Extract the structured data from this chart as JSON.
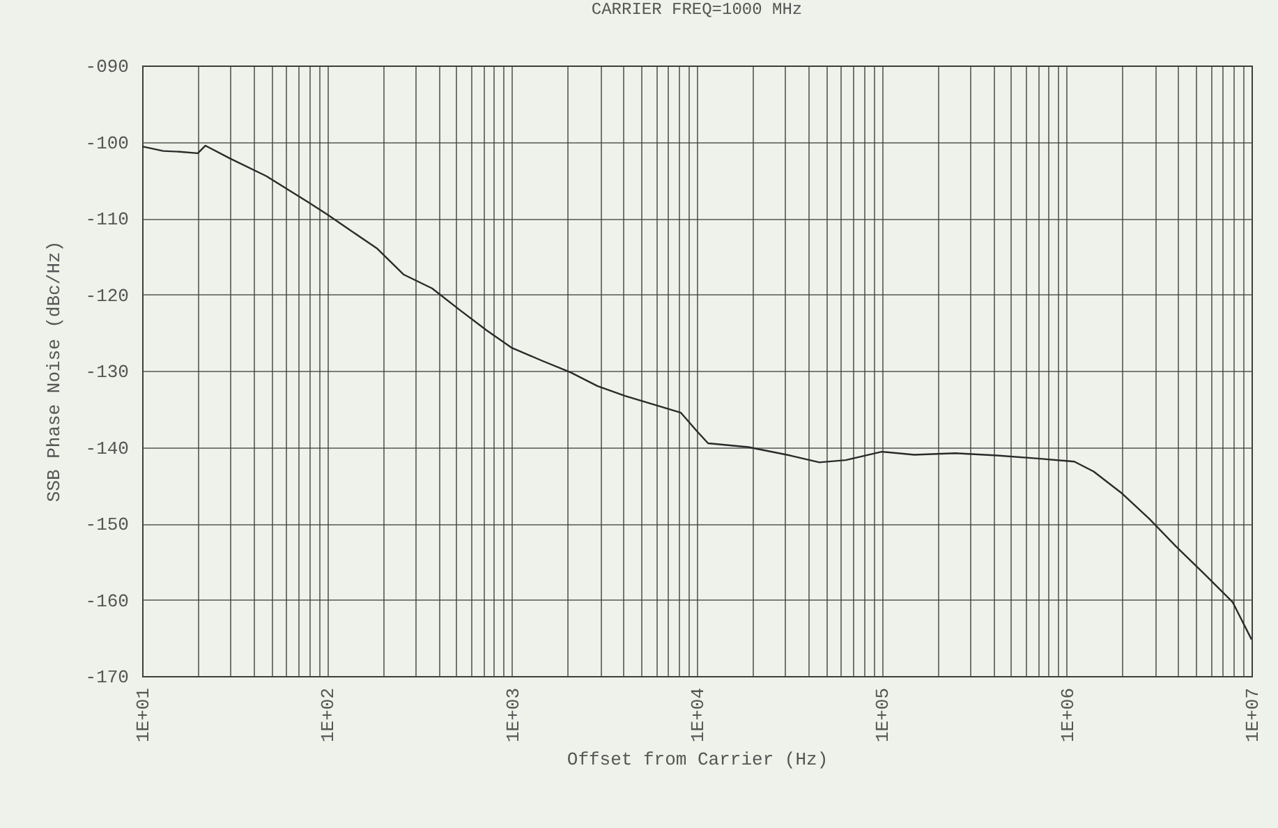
{
  "chart_data": {
    "type": "line",
    "title": "CARRIER FREQ=1000 MHz",
    "xlabel": "Offset from Carrier (Hz)",
    "ylabel": "SSB Phase Noise (dBc/Hz)",
    "log": "x",
    "grid": true,
    "legend": false,
    "marker": "none",
    "line_style": "solid",
    "xlim": [
      10,
      10000000
    ],
    "ylim": [
      -170,
      -90
    ],
    "xticks": [
      {
        "value": 10,
        "label": "1E+01"
      },
      {
        "value": 20,
        "label": null
      },
      {
        "value": 30,
        "label": null
      },
      {
        "value": 40,
        "label": null
      },
      {
        "value": 50,
        "label": null
      },
      {
        "value": 60,
        "label": null
      },
      {
        "value": 70,
        "label": null
      },
      {
        "value": 80,
        "label": null
      },
      {
        "value": 90,
        "label": null
      },
      {
        "value": 100,
        "label": "1E+02"
      },
      {
        "value": 200,
        "label": null
      },
      {
        "value": 300,
        "label": null
      },
      {
        "value": 400,
        "label": null
      },
      {
        "value": 500,
        "label": null
      },
      {
        "value": 600,
        "label": null
      },
      {
        "value": 700,
        "label": null
      },
      {
        "value": 800,
        "label": null
      },
      {
        "value": 900,
        "label": null
      },
      {
        "value": 1000,
        "label": "1E+03"
      },
      {
        "value": 2000,
        "label": null
      },
      {
        "value": 3000,
        "label": null
      },
      {
        "value": 4000,
        "label": null
      },
      {
        "value": 5000,
        "label": null
      },
      {
        "value": 6000,
        "label": null
      },
      {
        "value": 7000,
        "label": null
      },
      {
        "value": 8000,
        "label": null
      },
      {
        "value": 9000,
        "label": null
      },
      {
        "value": 10000,
        "label": "1E+04"
      },
      {
        "value": 20000,
        "label": null
      },
      {
        "value": 30000,
        "label": null
      },
      {
        "value": 40000,
        "label": null
      },
      {
        "value": 50000,
        "label": null
      },
      {
        "value": 60000,
        "label": null
      },
      {
        "value": 70000,
        "label": null
      },
      {
        "value": 80000,
        "label": null
      },
      {
        "value": 90000,
        "label": null
      },
      {
        "value": 100000,
        "label": "1E+05"
      },
      {
        "value": 200000,
        "label": null
      },
      {
        "value": 300000,
        "label": null
      },
      {
        "value": 400000,
        "label": null
      },
      {
        "value": 500000,
        "label": null
      },
      {
        "value": 600000,
        "label": null
      },
      {
        "value": 700000,
        "label": null
      },
      {
        "value": 800000,
        "label": null
      },
      {
        "value": 900000,
        "label": null
      },
      {
        "value": 1000000,
        "label": "1E+06"
      },
      {
        "value": 2000000,
        "label": null
      },
      {
        "value": 3000000,
        "label": null
      },
      {
        "value": 4000000,
        "label": null
      },
      {
        "value": 5000000,
        "label": null
      },
      {
        "value": 6000000,
        "label": null
      },
      {
        "value": 7000000,
        "label": null
      },
      {
        "value": 8000000,
        "label": null
      },
      {
        "value": 9000000,
        "label": null
      },
      {
        "value": 10000000,
        "label": "1E+07"
      }
    ],
    "yticks": [
      {
        "value": -90,
        "label": "-090"
      },
      {
        "value": -100,
        "label": "-100"
      },
      {
        "value": -110,
        "label": "-110"
      },
      {
        "value": -120,
        "label": "-120"
      },
      {
        "value": -130,
        "label": "-130"
      },
      {
        "value": -140,
        "label": "-140"
      },
      {
        "value": -150,
        "label": "-150"
      },
      {
        "value": -160,
        "label": "-160"
      },
      {
        "value": -170,
        "label": "-170"
      }
    ],
    "series": [
      {
        "color": "#2a2a2a",
        "x": [
          10,
          13,
          16,
          20,
          22,
          30,
          47,
          79,
          100,
          130,
          187,
          260,
          370,
          520,
          730,
          1000,
          1460,
          2070,
          2900,
          4100,
          5800,
          8200,
          10000,
          11500,
          19000,
          32000,
          46000,
          64000,
          100000,
          150000,
          250000,
          420000,
          700000,
          1100000,
          1400000,
          2000000,
          2800000,
          3900000,
          5600000,
          7900000,
          10000000
        ],
        "values": [
          -100.6,
          -101.2,
          -101.3,
          -101.5,
          -100.5,
          -102.2,
          -104.5,
          -107.9,
          -109.5,
          -111.4,
          -114,
          -117.4,
          -119.2,
          -122,
          -124.7,
          -127,
          -128.7,
          -130.2,
          -132,
          -133.3,
          -134.4,
          -135.5,
          -137.9,
          -139.5,
          -140,
          -141.1,
          -142,
          -141.7,
          -140.6,
          -141,
          -140.8,
          -141.1,
          -141.5,
          -141.9,
          -143.2,
          -146.1,
          -149.4,
          -153,
          -156.7,
          -160.3,
          -165.2
        ]
      }
    ]
  }
}
